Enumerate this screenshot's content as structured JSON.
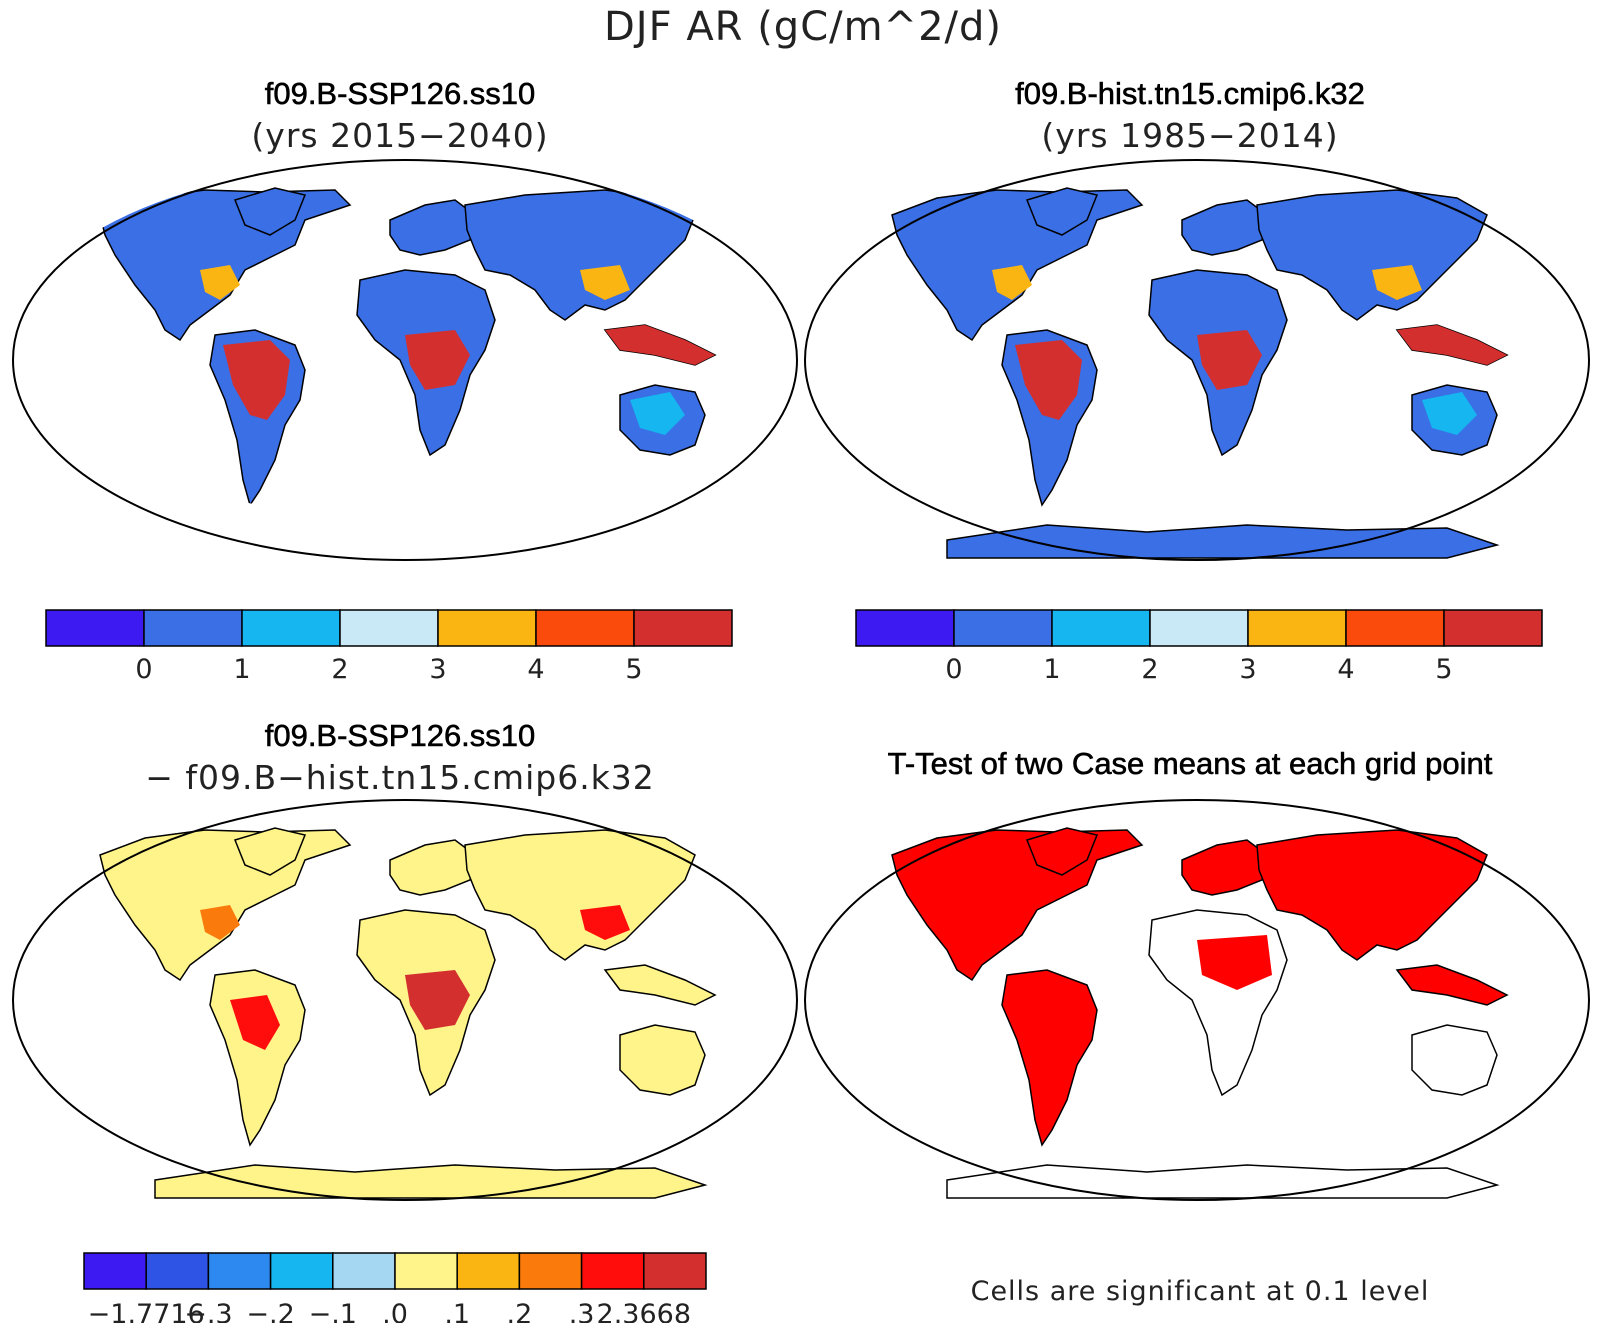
{
  "title": "DJF AR (gC/m^2/d)",
  "panels": [
    {
      "title": "f09.B-SSP126.ss10",
      "subtitle": "(yrs 2015−2040)"
    },
    {
      "title": "f09.B-hist.tn15.cmip6.k32",
      "subtitle": "(yrs 1985−2014)"
    },
    {
      "title": "f09.B-SSP126.ss10",
      "subtitle": "− f09.B−hist.tn15.cmip6.k32"
    },
    {
      "title": "T-Test of two Case means at each grid point",
      "subtitle": ""
    }
  ],
  "colorbar_abs": {
    "colors": [
      "#3d1af2",
      "#3a6fe6",
      "#16b6f0",
      "#c9e9f7",
      "#fbb512",
      "#fa4a0c",
      "#d42f2f"
    ],
    "labels": [
      "0",
      "1",
      "2",
      "3",
      "4",
      "5"
    ]
  },
  "colorbar_diff": {
    "colors": [
      "#3d1af2",
      "#2e54e6",
      "#2d88f0",
      "#16b6f0",
      "#a5d6f2",
      "#fef48a",
      "#fbb512",
      "#fa7a0c",
      "#ff0d0d",
      "#d42f2f"
    ],
    "labels": [
      "−1.7716",
      "−.3",
      "−.2",
      "−.1",
      ".0",
      ".1",
      ".2",
      ".3",
      "2.3668"
    ]
  },
  "significance_note": "Cells are significant at 0.1 level",
  "map_colors": {
    "ocean": "#ffffff",
    "panel_a_land": "#3a6fe6",
    "panel_b_land": "#3a6fe6",
    "panel_c_land": "#fef48a",
    "panel_d_land": "#ff0000",
    "tropics_high": "#d42f2f",
    "mid_orange": "#fbb512",
    "light_blue": "#16b6f0"
  }
}
